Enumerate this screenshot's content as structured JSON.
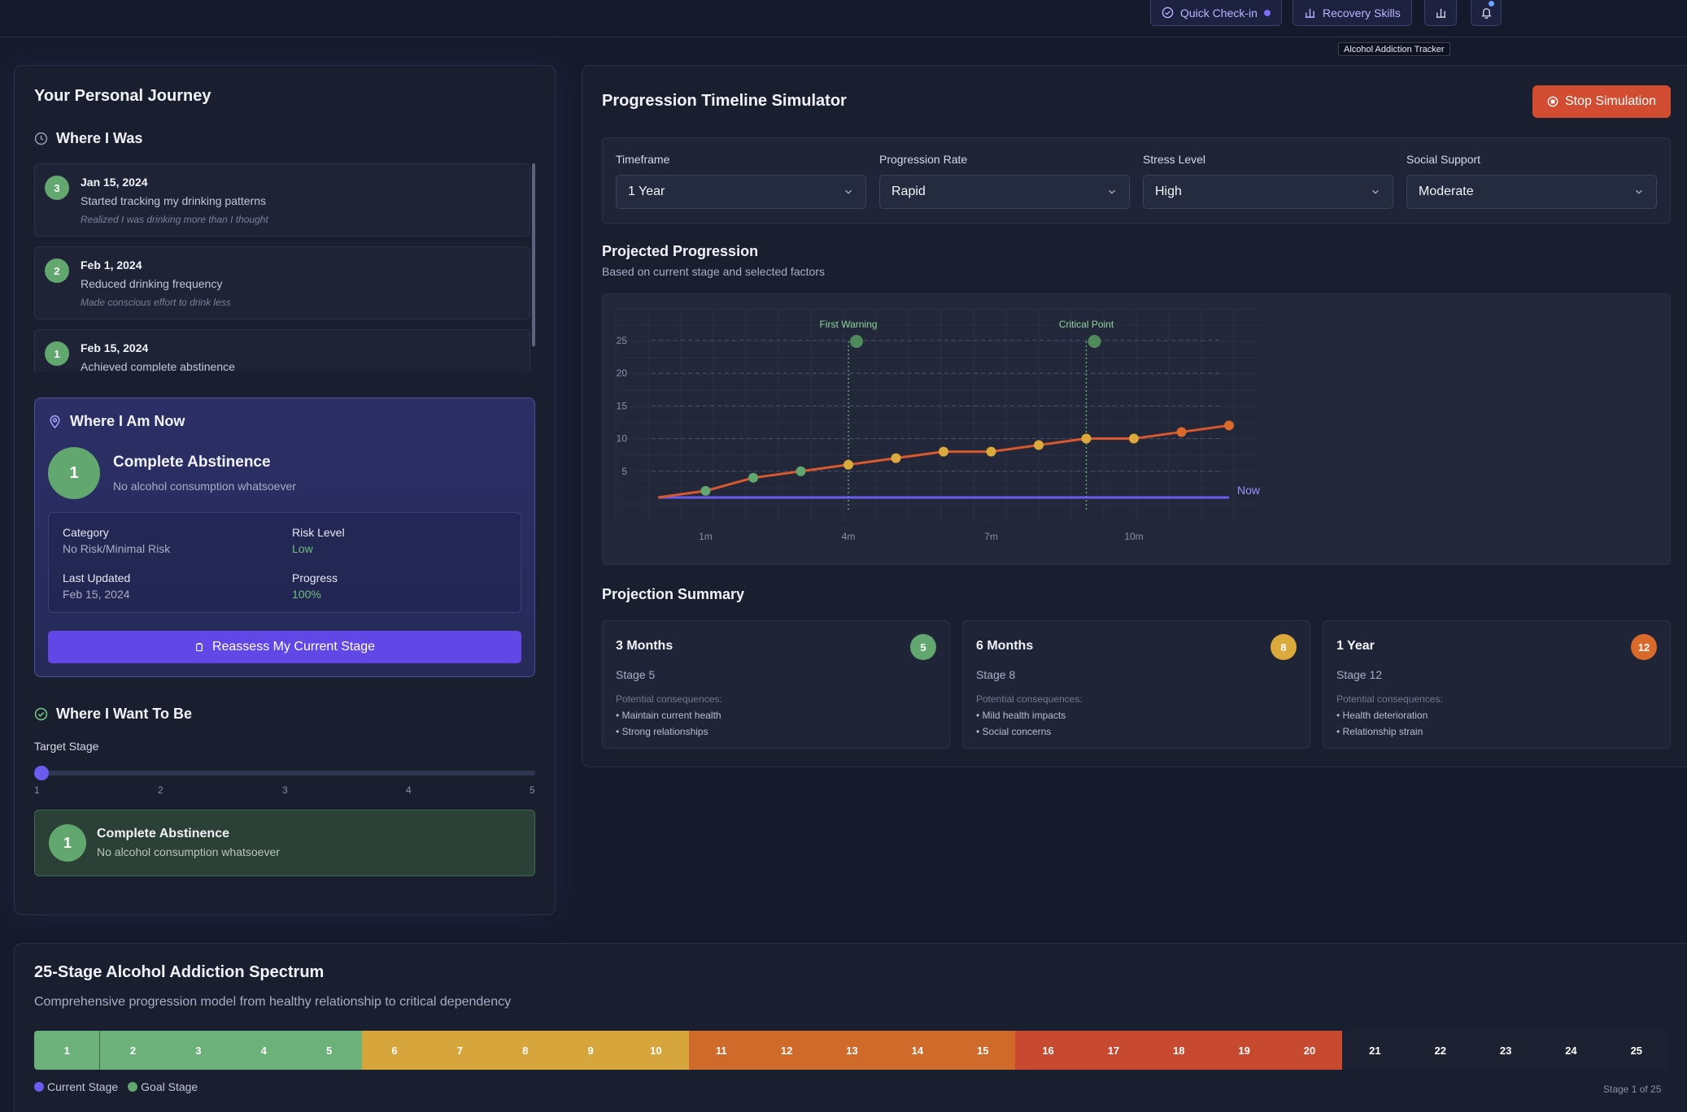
{
  "topbar": {
    "quick_checkin": "Quick Check-in",
    "recovery_skills": "Recovery Skills",
    "tooltip": "Alcohol Addiction Tracker"
  },
  "journey": {
    "title": "Your Personal Journey",
    "where_i_was": "Where I Was",
    "history": [
      {
        "badge": "3",
        "date": "Jan 15, 2024",
        "desc": "Started tracking my drinking patterns",
        "note": "Realized I was drinking more than I thought"
      },
      {
        "badge": "2",
        "date": "Feb 1, 2024",
        "desc": "Reduced drinking frequency",
        "note": "Made conscious effort to drink less"
      },
      {
        "badge": "1",
        "date": "Feb 15, 2024",
        "desc": "Achieved complete abstinence",
        "note": ""
      }
    ],
    "where_i_am_now": "Where I Am Now",
    "now": {
      "badge": "1",
      "title": "Complete Abstinence",
      "subtitle": "No alcohol consumption whatsoever",
      "category_label": "Category",
      "category_value": "No Risk/Minimal Risk",
      "risk_label": "Risk Level",
      "risk_value": "Low",
      "updated_label": "Last Updated",
      "updated_value": "Feb 15, 2024",
      "progress_label": "Progress",
      "progress_value": "100%",
      "reassess": "Reassess My Current Stage"
    },
    "where_i_want": "Where I Want To Be",
    "target_label": "Target Stage",
    "target_value": 1,
    "ticks": [
      "1",
      "2",
      "3",
      "4",
      "5"
    ],
    "goal": {
      "badge": "1",
      "title": "Complete Abstinence",
      "subtitle": "No alcohol consumption whatsoever"
    }
  },
  "simulator": {
    "title": "Progression Timeline Simulator",
    "stop": "Stop Simulation",
    "controls": [
      {
        "label": "Timeframe",
        "value": "1 Year"
      },
      {
        "label": "Progression Rate",
        "value": "Rapid"
      },
      {
        "label": "Stress Level",
        "value": "High"
      },
      {
        "label": "Social Support",
        "value": "Moderate"
      }
    ],
    "proj_title": "Projected Progression",
    "proj_sub": "Based on current stage and selected factors",
    "summary_title": "Projection Summary",
    "summary": [
      {
        "title": "3 Months",
        "badge": "5",
        "color": "#62a770",
        "stage": "Stage 5",
        "pc": "Potential consequences:",
        "items": [
          "• Maintain current health",
          "• Strong relationships"
        ]
      },
      {
        "title": "6 Months",
        "badge": "8",
        "color": "#dba93c",
        "stage": "Stage 8",
        "pc": "Potential consequences:",
        "items": [
          "• Mild health impacts",
          "• Social concerns"
        ]
      },
      {
        "title": "1 Year",
        "badge": "12",
        "color": "#d96a2b",
        "stage": "Stage 12",
        "pc": "Potential consequences:",
        "items": [
          "• Health deterioration",
          "• Relationship strain"
        ]
      }
    ]
  },
  "chart_data": {
    "type": "line",
    "x": [
      0,
      1,
      2,
      3,
      4,
      5,
      6,
      7,
      8,
      9,
      10,
      11,
      12
    ],
    "xticks": [
      {
        "x": 1,
        "label": "1m"
      },
      {
        "x": 4,
        "label": "4m"
      },
      {
        "x": 7,
        "label": "7m"
      },
      {
        "x": 10,
        "label": "10m"
      }
    ],
    "series": [
      {
        "values": [
          1,
          2,
          4,
          5,
          6,
          7,
          8,
          8,
          9,
          10,
          10,
          11,
          12
        ],
        "point_colors": [
          "",
          "#62a770",
          "#62a770",
          "#62a770",
          "#dba93c",
          "#dba93c",
          "#dba93c",
          "#dba93c",
          "#dba93c",
          "#dba93c",
          "#dba93c",
          "#d96a2b",
          "#d96a2b"
        ]
      }
    ],
    "baseline": {
      "value": 1,
      "label": "Now"
    },
    "markers": [
      {
        "x": 4,
        "label": "First Warning"
      },
      {
        "x": 9,
        "label": "Critical Point"
      }
    ],
    "yticks": [
      5,
      10,
      15,
      20,
      25
    ],
    "ylim": [
      0,
      25
    ],
    "xlim": [
      0,
      12
    ]
  },
  "spectrum": {
    "title": "25-Stage Alcohol Addiction Spectrum",
    "subtitle": "Comprehensive progression model from healthy relationship to critical dependency",
    "legend_current": "Current Stage",
    "legend_goal": "Goal Stage",
    "footer": "Stage 1 of 25",
    "stages": [
      {
        "n": "1",
        "c": "#6cb07a"
      },
      {
        "n": "2",
        "c": "#6cb07a"
      },
      {
        "n": "3",
        "c": "#6cb07a"
      },
      {
        "n": "4",
        "c": "#6cb07a"
      },
      {
        "n": "5",
        "c": "#6cb07a"
      },
      {
        "n": "6",
        "c": "#d6a53c"
      },
      {
        "n": "7",
        "c": "#d6a53c"
      },
      {
        "n": "8",
        "c": "#d6a53c"
      },
      {
        "n": "9",
        "c": "#d6a53c"
      },
      {
        "n": "10",
        "c": "#d6a53c"
      },
      {
        "n": "11",
        "c": "#cf6a2a"
      },
      {
        "n": "12",
        "c": "#cf6a2a"
      },
      {
        "n": "13",
        "c": "#cf6a2a"
      },
      {
        "n": "14",
        "c": "#cf6a2a"
      },
      {
        "n": "15",
        "c": "#cf6a2a"
      },
      {
        "n": "16",
        "c": "#c7492f"
      },
      {
        "n": "17",
        "c": "#c7492f"
      },
      {
        "n": "18",
        "c": "#c7492f"
      },
      {
        "n": "19",
        "c": "#c7492f"
      },
      {
        "n": "20",
        "c": "#c7492f"
      },
      {
        "n": "21",
        "c": "#1d2233"
      },
      {
        "n": "22",
        "c": "#1d2233"
      },
      {
        "n": "23",
        "c": "#1d2233"
      },
      {
        "n": "24",
        "c": "#1d2233"
      },
      {
        "n": "25",
        "c": "#1d2233"
      }
    ]
  }
}
